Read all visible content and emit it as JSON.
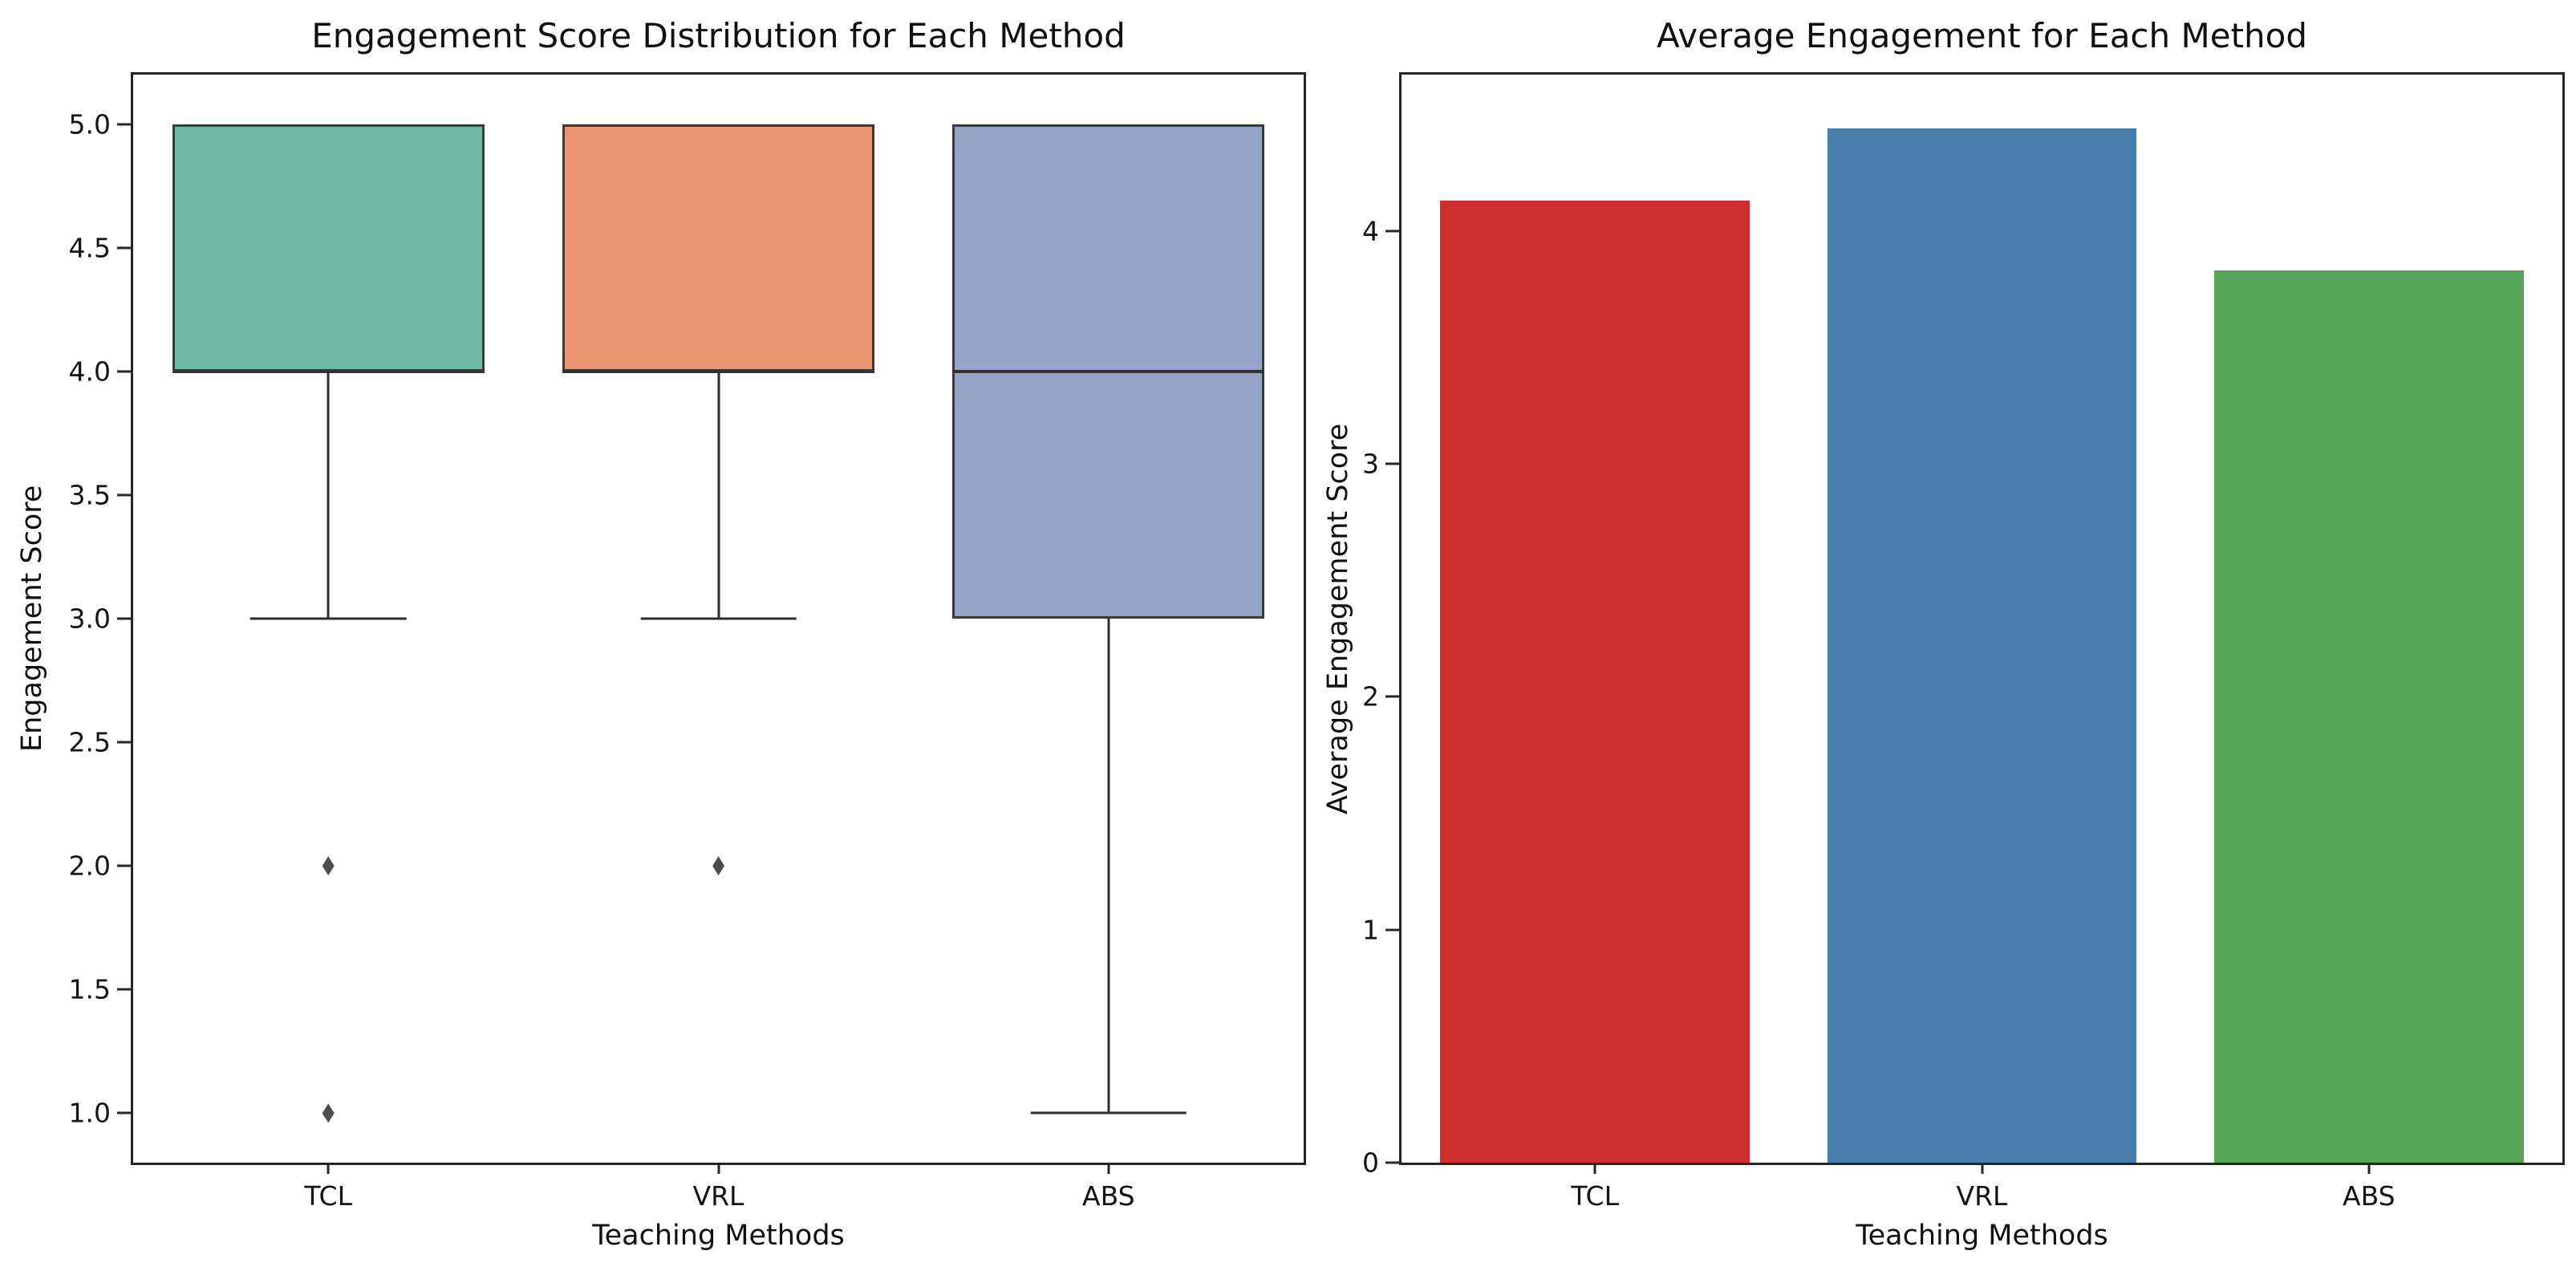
{
  "chart_data": [
    {
      "type": "box",
      "title": "Engagement Score Distribution for Each Method",
      "xlabel": "Teaching Methods",
      "ylabel": "Engagement Score",
      "categories": [
        "TCL",
        "VRL",
        "ABS"
      ],
      "ylim": [
        0.8,
        5.2
      ],
      "yticks": [
        5.0,
        4.5,
        4.0,
        3.5,
        3.0,
        2.5,
        2.0,
        1.5,
        1.0
      ],
      "ytick_labels": [
        "5.0",
        "4.5",
        "4.0",
        "3.5",
        "3.0",
        "2.5",
        "2.0",
        "1.5",
        "1.0"
      ],
      "box_width_frac": 0.8,
      "edge_color": "#3b3b3b",
      "line_color": "#2e2e2e",
      "outlier_color": "#4d4d4d",
      "boxes": [
        {
          "category": "TCL",
          "q1": 4.0,
          "median": 4.0,
          "q3": 5.0,
          "whisker_low": 3.0,
          "whisker_high": 5.0,
          "outliers": [
            2.0,
            1.0
          ],
          "fill": "#6db9a3"
        },
        {
          "category": "VRL",
          "q1": 4.0,
          "median": 4.0,
          "q3": 5.0,
          "whisker_low": 3.0,
          "whisker_high": 5.0,
          "outliers": [
            2.0
          ],
          "fill": "#eb9574"
        },
        {
          "category": "ABS",
          "q1": 3.0,
          "median": 4.0,
          "q3": 5.0,
          "whisker_low": 1.0,
          "whisker_high": 5.0,
          "outliers": [],
          "fill": "#95a4c7"
        }
      ],
      "legend": "none",
      "grid": false
    },
    {
      "type": "bar",
      "title": "Average Engagement for Each Method",
      "xlabel": "Teaching Methods",
      "ylabel": "Average Engagement Score",
      "categories": [
        "TCL",
        "VRL",
        "ABS"
      ],
      "values": [
        4.13,
        4.44,
        3.83
      ],
      "colors": [
        "#cd2f2f",
        "#477cab",
        "#55a455"
      ],
      "ylim": [
        0,
        4.67
      ],
      "yticks": [
        0,
        1,
        2,
        3,
        4
      ],
      "ytick_labels": [
        "0",
        "1",
        "2",
        "3",
        "4"
      ],
      "bar_width_frac": 0.8,
      "legend": "none",
      "grid": false
    }
  ]
}
